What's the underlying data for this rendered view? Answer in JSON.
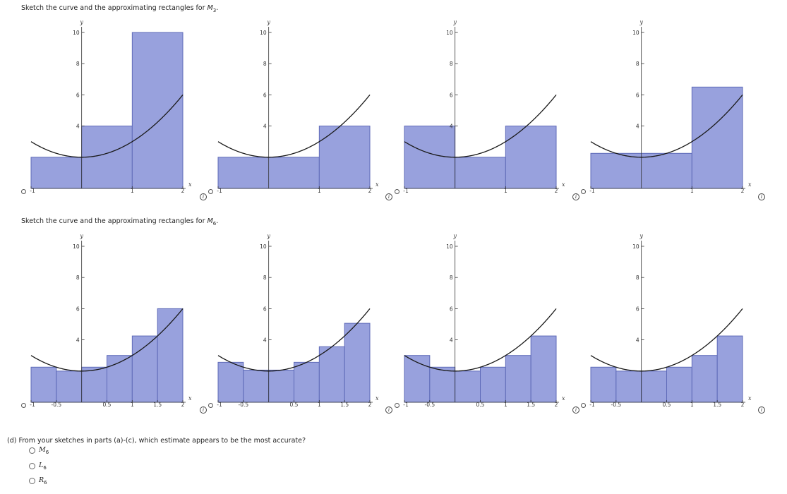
{
  "part_b": {
    "heading_prefix": "Sketch the curve and the approximating rectangles for ",
    "heading_var": "M",
    "heading_sub": "3",
    "heading_suffix": "."
  },
  "part_c": {
    "heading_prefix": "Sketch the curve and the approximating rectangles for ",
    "heading_var": "M",
    "heading_sub": "6",
    "heading_suffix": "."
  },
  "question": {
    "text": "(d)  From your sketches in parts (a)-(c), which estimate appears to be the most accurate?",
    "options": [
      {
        "var": "M",
        "sub": "6"
      },
      {
        "var": "L",
        "sub": "6"
      },
      {
        "var": "R",
        "sub": "6"
      }
    ]
  },
  "info_icon_glyph": "i",
  "colors": {
    "rect_fill": "#98a1dd",
    "rect_stroke": "#5e6ab8",
    "curve": "#1a1a1a",
    "axis": "#333333"
  },
  "chart_data": [
    {
      "type": "bar",
      "curve": "y = x^2 + 2",
      "xlim": [
        -1,
        2
      ],
      "ylim": [
        0,
        10
      ],
      "x_ticks": [
        "-1",
        "1",
        "2"
      ],
      "y_ticks": [
        "4",
        "6",
        "8",
        "10"
      ],
      "xlabel": "x",
      "ylabel": "y",
      "intervals": [
        [
          -1,
          0
        ],
        [
          0,
          1
        ],
        [
          1,
          2
        ]
      ],
      "values": [
        2,
        4,
        10
      ]
    },
    {
      "type": "bar",
      "curve": "y = x^2 + 2",
      "xlim": [
        -1,
        2
      ],
      "ylim": [
        0,
        10
      ],
      "x_ticks": [
        "-1",
        "1",
        "2"
      ],
      "y_ticks": [
        "4",
        "6",
        "8",
        "10"
      ],
      "xlabel": "x",
      "ylabel": "y",
      "intervals": [
        [
          -1,
          1
        ],
        [
          1,
          2
        ]
      ],
      "values": [
        2,
        4
      ]
    },
    {
      "type": "bar",
      "curve": "y = x^2 + 2",
      "xlim": [
        -1,
        2
      ],
      "ylim": [
        0,
        10
      ],
      "x_ticks": [
        "-1",
        "1",
        "2"
      ],
      "y_ticks": [
        "4",
        "6",
        "8",
        "10"
      ],
      "xlabel": "x",
      "ylabel": "y",
      "intervals": [
        [
          -1,
          0
        ],
        [
          0,
          1
        ],
        [
          1,
          2
        ]
      ],
      "values": [
        4,
        2,
        4
      ]
    },
    {
      "type": "bar",
      "curve": "y = x^2 + 2",
      "xlim": [
        -1,
        2
      ],
      "ylim": [
        0,
        10
      ],
      "x_ticks": [
        "-1",
        "1",
        "2"
      ],
      "y_ticks": [
        "4",
        "6",
        "8",
        "10"
      ],
      "xlabel": "x",
      "ylabel": "y",
      "intervals": [
        [
          -1,
          1
        ],
        [
          1,
          2
        ]
      ],
      "values": [
        2.25,
        6.5
      ]
    },
    {
      "type": "bar",
      "curve": "y = x^2 + 2",
      "xlim": [
        -1,
        2
      ],
      "ylim": [
        0,
        10
      ],
      "x_ticks": [
        "-1",
        "-0.5",
        "0.5",
        "1",
        "1.5",
        "2"
      ],
      "y_ticks": [
        "4",
        "6",
        "8",
        "10"
      ],
      "xlabel": "x",
      "ylabel": "y",
      "intervals": [
        [
          -1,
          -0.5
        ],
        [
          -0.5,
          0
        ],
        [
          0,
          0.5
        ],
        [
          0.5,
          1
        ],
        [
          1,
          1.5
        ],
        [
          1.5,
          2
        ]
      ],
      "values": [
        2.25,
        2,
        2.25,
        3,
        4.25,
        6
      ]
    },
    {
      "type": "bar",
      "curve": "y = x^2 + 2",
      "xlim": [
        -1,
        2
      ],
      "ylim": [
        0,
        10
      ],
      "x_ticks": [
        "-1",
        "-0.5",
        "0.5",
        "1",
        "1.5",
        "2"
      ],
      "y_ticks": [
        "4",
        "6",
        "8",
        "10"
      ],
      "xlabel": "x",
      "ylabel": "y",
      "intervals": [
        [
          -1,
          -0.5
        ],
        [
          -0.5,
          0
        ],
        [
          0,
          0.5
        ],
        [
          0.5,
          1
        ],
        [
          1,
          1.5
        ],
        [
          1.5,
          2
        ]
      ],
      "values": [
        2.5625,
        2.0625,
        2.0625,
        2.5625,
        3.5625,
        5.0625
      ]
    },
    {
      "type": "bar",
      "curve": "y = x^2 + 2",
      "xlim": [
        -1,
        2
      ],
      "ylim": [
        0,
        10
      ],
      "x_ticks": [
        "-1",
        "-0.5",
        "0.5",
        "1",
        "1.5",
        "2"
      ],
      "y_ticks": [
        "4",
        "6",
        "8",
        "10"
      ],
      "xlabel": "x",
      "ylabel": "y",
      "intervals": [
        [
          -1,
          -0.5
        ],
        [
          -0.5,
          0
        ],
        [
          0,
          0.5
        ],
        [
          0.5,
          1
        ],
        [
          1,
          1.5
        ],
        [
          1.5,
          2
        ]
      ],
      "values": [
        3,
        2.25,
        2,
        2.25,
        3,
        4.25
      ]
    },
    {
      "type": "bar",
      "curve": "y = x^2 + 2",
      "xlim": [
        -1,
        2
      ],
      "ylim": [
        0,
        10
      ],
      "x_ticks": [
        "-1",
        "-0.5",
        "0.5",
        "1",
        "1.5",
        "2"
      ],
      "y_ticks": [
        "4",
        "6",
        "8",
        "10"
      ],
      "xlabel": "x",
      "ylabel": "y",
      "intervals": [
        [
          -1,
          -0.5
        ],
        [
          -0.5,
          0
        ],
        [
          0,
          0.5
        ],
        [
          0.5,
          1
        ],
        [
          1,
          1.5
        ],
        [
          1.5,
          2
        ]
      ],
      "values": [
        2.25,
        2,
        2,
        2.25,
        3,
        4.25
      ]
    }
  ]
}
